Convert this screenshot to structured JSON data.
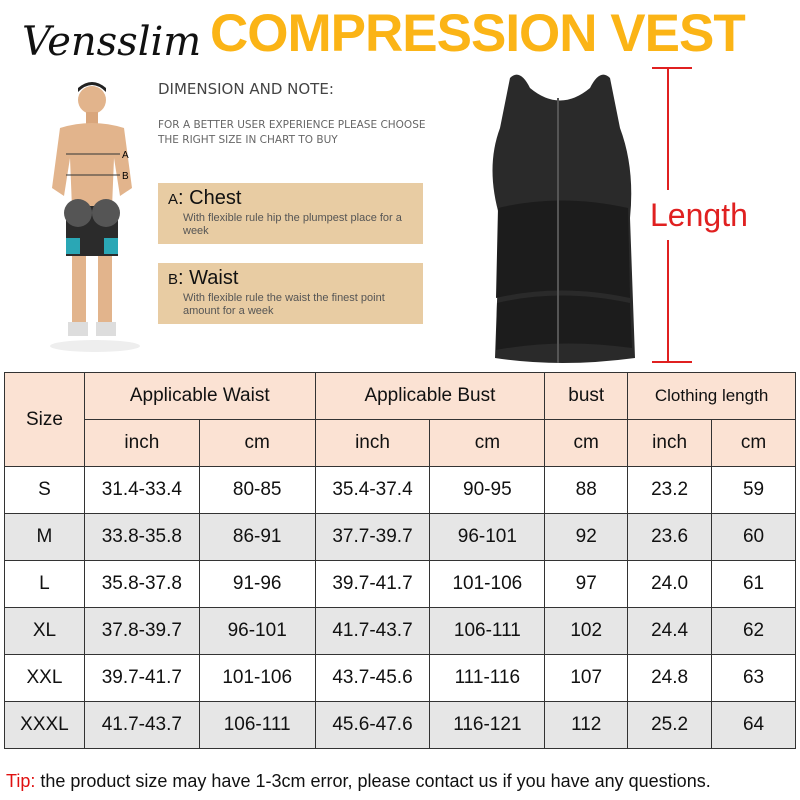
{
  "brand": "Vensslim",
  "title": "COMPRESSION VEST",
  "dimension_heading": "DIMENSION AND NOTE:",
  "note": "FOR A BETTER USER EXPERIENCE PLEASE CHOOSE THE RIGHT SIZE IN CHART  TO BUY",
  "figure_labels": {
    "a": "A",
    "b": "B"
  },
  "measures": [
    {
      "letter": "A",
      "name": ": Chest",
      "desc": "With flexible rule hip the plumpest place for a week"
    },
    {
      "letter": "B",
      "name": ": Waist",
      "desc": "With flexible rule the waist the finest point amount for a week"
    }
  ],
  "length_label": "Length",
  "table": {
    "size_header": "Size",
    "groups": [
      "Applicable Waist",
      "Applicable Bust",
      "bust",
      "Clothing length"
    ],
    "units": [
      "inch",
      "cm",
      "inch",
      "cm",
      "cm",
      "inch",
      "cm"
    ],
    "rows": [
      [
        "S",
        "31.4-33.4",
        "80-85",
        "35.4-37.4",
        "90-95",
        "88",
        "23.2",
        "59"
      ],
      [
        "M",
        "33.8-35.8",
        "86-91",
        "37.7-39.7",
        "96-101",
        "92",
        "23.6",
        "60"
      ],
      [
        "L",
        "35.8-37.8",
        "91-96",
        "39.7-41.7",
        "101-106",
        "97",
        "24.0",
        "61"
      ],
      [
        "XL",
        "37.8-39.7",
        "96-101",
        "41.7-43.7",
        "106-111",
        "102",
        "24.4",
        "62"
      ],
      [
        "XXL",
        "39.7-41.7",
        "101-106",
        "43.7-45.6",
        "111-116",
        "107",
        "24.8",
        "63"
      ],
      [
        "XXXL",
        "41.7-43.7",
        "106-111",
        "45.6-47.6",
        "116-121",
        "112",
        "25.2",
        "64"
      ]
    ]
  },
  "tip": {
    "label": "Tip:",
    "text": " the product size may have 1-3cm error, please contact us if you have any questions."
  },
  "colors": {
    "title": "#fbb416",
    "header_bg": "#fbe2d3",
    "box_bg": "#e8cca3",
    "accent_red": "#e02020"
  }
}
